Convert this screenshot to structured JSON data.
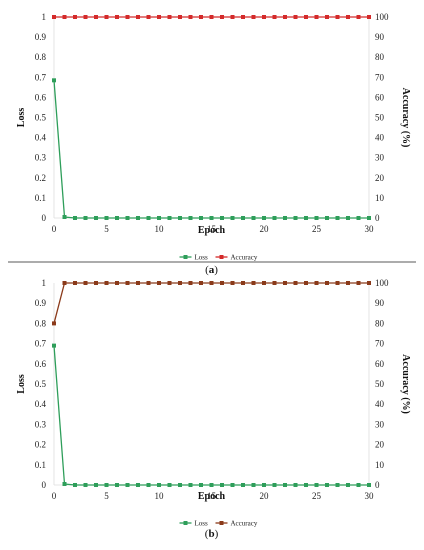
{
  "chart_data": [
    {
      "type": "line",
      "panel_label": "a",
      "xlabel": "Epoch",
      "ylabel": "Loss",
      "y2label": "Accuracy (%)",
      "xlim": [
        0,
        30
      ],
      "ylim": [
        0,
        1
      ],
      "y2lim": [
        0,
        100
      ],
      "xticks": [
        0,
        5,
        10,
        15,
        20,
        25,
        30
      ],
      "yticks": [
        0,
        0.1,
        0.2,
        0.3,
        0.4,
        0.5,
        0.6,
        0.7,
        0.8,
        0.9,
        1
      ],
      "y2ticks": [
        0,
        10,
        20,
        30,
        40,
        50,
        60,
        70,
        80,
        90,
        100
      ],
      "legend_position": "bottom",
      "x": [
        0,
        1,
        2,
        3,
        4,
        5,
        6,
        7,
        8,
        9,
        10,
        11,
        12,
        13,
        14,
        15,
        16,
        17,
        18,
        19,
        20,
        21,
        22,
        23,
        24,
        25,
        26,
        27,
        28,
        29,
        30
      ],
      "series": [
        {
          "name": "Loss",
          "axis": "left",
          "color": "#2e9e5a",
          "values": [
            0.685,
            0.005,
            0,
            0,
            0,
            0,
            0,
            0,
            0,
            0,
            0,
            0,
            0,
            0,
            0,
            0,
            0,
            0,
            0,
            0,
            0,
            0,
            0,
            0,
            0,
            0,
            0,
            0,
            0,
            0,
            0
          ]
        },
        {
          "name": "Accuracy",
          "axis": "right",
          "color": "#d42a2a",
          "values": [
            100,
            100,
            100,
            100,
            100,
            100,
            100,
            100,
            100,
            100,
            100,
            100,
            100,
            100,
            100,
            100,
            100,
            100,
            100,
            100,
            100,
            100,
            100,
            100,
            100,
            100,
            100,
            100,
            100,
            100,
            100
          ]
        }
      ]
    },
    {
      "type": "line",
      "panel_label": "b",
      "xlabel": "Epoch",
      "ylabel": "Loss",
      "y2label": "Accuracy (%)",
      "xlim": [
        0,
        30
      ],
      "ylim": [
        0,
        1
      ],
      "y2lim": [
        0,
        100
      ],
      "xticks": [
        0,
        5,
        10,
        15,
        20,
        25,
        30
      ],
      "yticks": [
        0,
        0.1,
        0.2,
        0.3,
        0.4,
        0.5,
        0.6,
        0.7,
        0.8,
        0.9,
        1
      ],
      "y2ticks": [
        0,
        10,
        20,
        30,
        40,
        50,
        60,
        70,
        80,
        90,
        100
      ],
      "legend_position": "bottom",
      "x": [
        0,
        1,
        2,
        3,
        4,
        5,
        6,
        7,
        8,
        9,
        10,
        11,
        12,
        13,
        14,
        15,
        16,
        17,
        18,
        19,
        20,
        21,
        22,
        23,
        24,
        25,
        26,
        27,
        28,
        29,
        30
      ],
      "series": [
        {
          "name": "Loss",
          "axis": "left",
          "color": "#2e9e5a",
          "values": [
            0.69,
            0.005,
            0,
            0,
            0,
            0,
            0,
            0,
            0,
            0,
            0,
            0,
            0,
            0,
            0,
            0,
            0,
            0,
            0,
            0,
            0,
            0,
            0,
            0,
            0,
            0,
            0,
            0,
            0,
            0,
            0
          ]
        },
        {
          "name": "Accuracy",
          "axis": "right",
          "color": "#8b3a1a",
          "values": [
            80,
            100,
            100,
            100,
            100,
            100,
            100,
            100,
            100,
            100,
            100,
            100,
            100,
            100,
            100,
            100,
            100,
            100,
            100,
            100,
            100,
            100,
            100,
            100,
            100,
            100,
            100,
            100,
            100,
            100,
            100
          ]
        }
      ]
    }
  ]
}
